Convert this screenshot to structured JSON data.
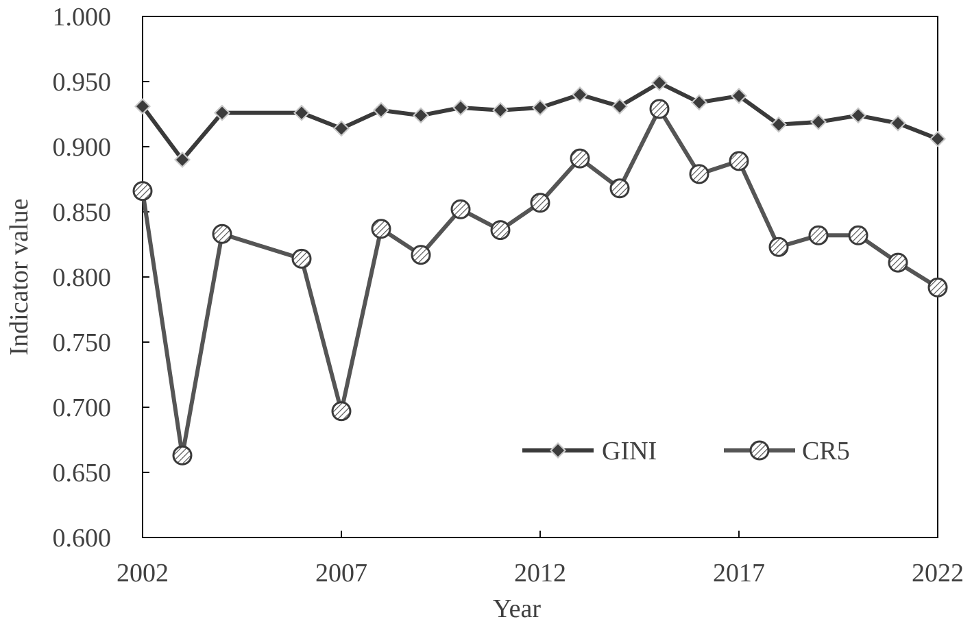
{
  "chart_data": {
    "type": "line",
    "xlabel": "Year",
    "ylabel": "Indicator value",
    "xlim": [
      2002,
      2022
    ],
    "ylim": [
      0.6,
      1.0
    ],
    "x_ticks": [
      "2002",
      "2007",
      "2012",
      "2017",
      "2022"
    ],
    "y_ticks": [
      "0.600",
      "0.650",
      "0.700",
      "0.750",
      "0.800",
      "0.850",
      "0.900",
      "0.950",
      "1.000"
    ],
    "grid": false,
    "legend_position": "bottom-right",
    "x": [
      2002,
      2003,
      2004,
      2006,
      2007,
      2008,
      2009,
      2010,
      2011,
      2012,
      2013,
      2014,
      2015,
      2016,
      2017,
      2018,
      2019,
      2020,
      2021,
      2022
    ],
    "series": [
      {
        "name": "GINI",
        "marker": "diamond",
        "color": "#3a3a3a",
        "values": [
          0.931,
          0.89,
          0.926,
          0.926,
          0.914,
          0.928,
          0.924,
          0.93,
          0.928,
          0.93,
          0.94,
          0.931,
          0.949,
          0.934,
          0.939,
          0.917,
          0.919,
          0.924,
          0.918,
          0.906
        ]
      },
      {
        "name": "CR5",
        "marker": "hatched-circle",
        "color": "#555555",
        "values": [
          0.866,
          0.663,
          0.833,
          0.814,
          0.697,
          0.837,
          0.817,
          0.852,
          0.836,
          0.857,
          0.891,
          0.868,
          0.929,
          0.879,
          0.889,
          0.823,
          0.832,
          0.832,
          0.811,
          0.792
        ]
      }
    ]
  }
}
